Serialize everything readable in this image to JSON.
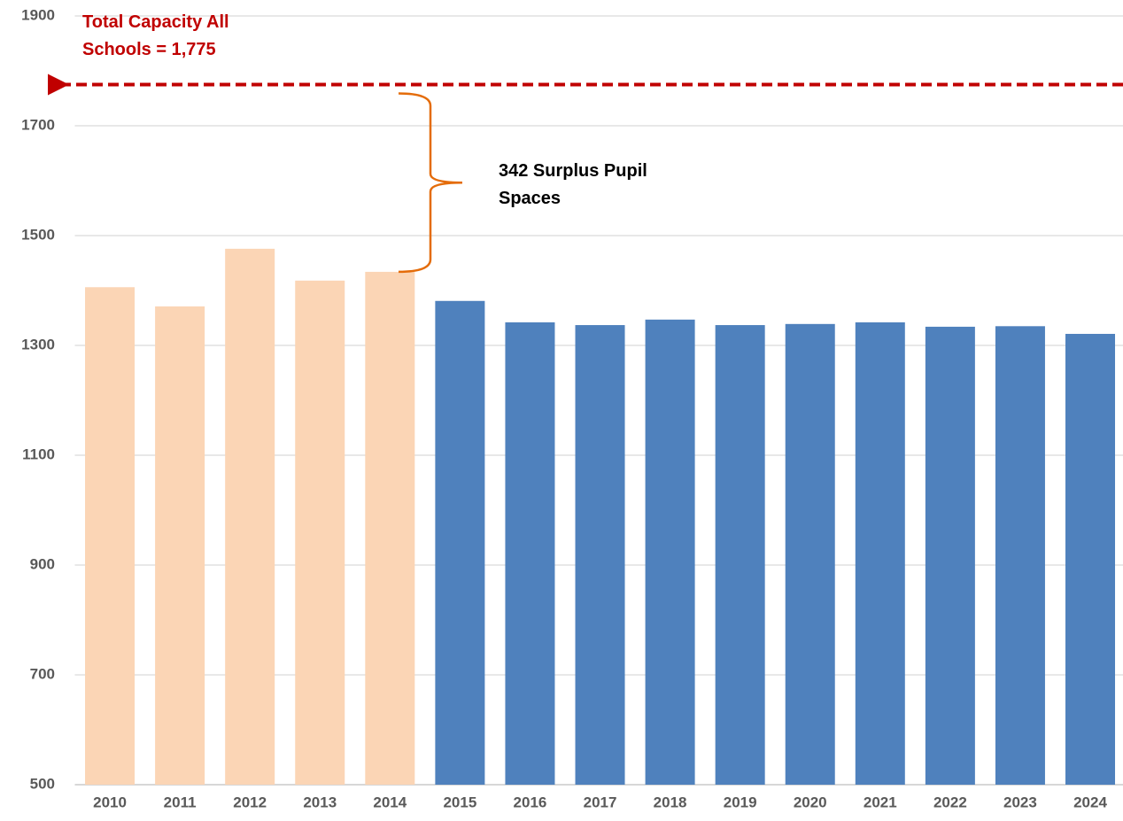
{
  "chart_data": {
    "type": "bar",
    "categories": [
      "2010",
      "2011",
      "2012",
      "2013",
      "2014",
      "2015",
      "2016",
      "2017",
      "2018",
      "2019",
      "2020",
      "2021",
      "2022",
      "2023",
      "2024"
    ],
    "values": [
      1406,
      1371,
      1476,
      1418,
      1434,
      1381,
      1342,
      1337,
      1347,
      1337,
      1339,
      1342,
      1334,
      1335,
      1321
    ],
    "bar_colors": [
      "#fbd5b5",
      "#fbd5b5",
      "#fbd5b5",
      "#fbd5b5",
      "#fbd5b5",
      "#4f81bd",
      "#4f81bd",
      "#4f81bd",
      "#4f81bd",
      "#4f81bd",
      "#4f81bd",
      "#4f81bd",
      "#4f81bd",
      "#4f81bd",
      "#4f81bd"
    ],
    "ylim": [
      500,
      1900
    ],
    "yticks": [
      500,
      700,
      900,
      1100,
      1300,
      1500,
      1700,
      1900
    ],
    "grid": true,
    "capacity": 1775,
    "capacity_color": "#c00000",
    "capacity_label": "Total Capacity All Schools = 1,775",
    "surplus_label": "342 Surplus Pupil Spaces",
    "surplus_color": "#e46c0a"
  }
}
